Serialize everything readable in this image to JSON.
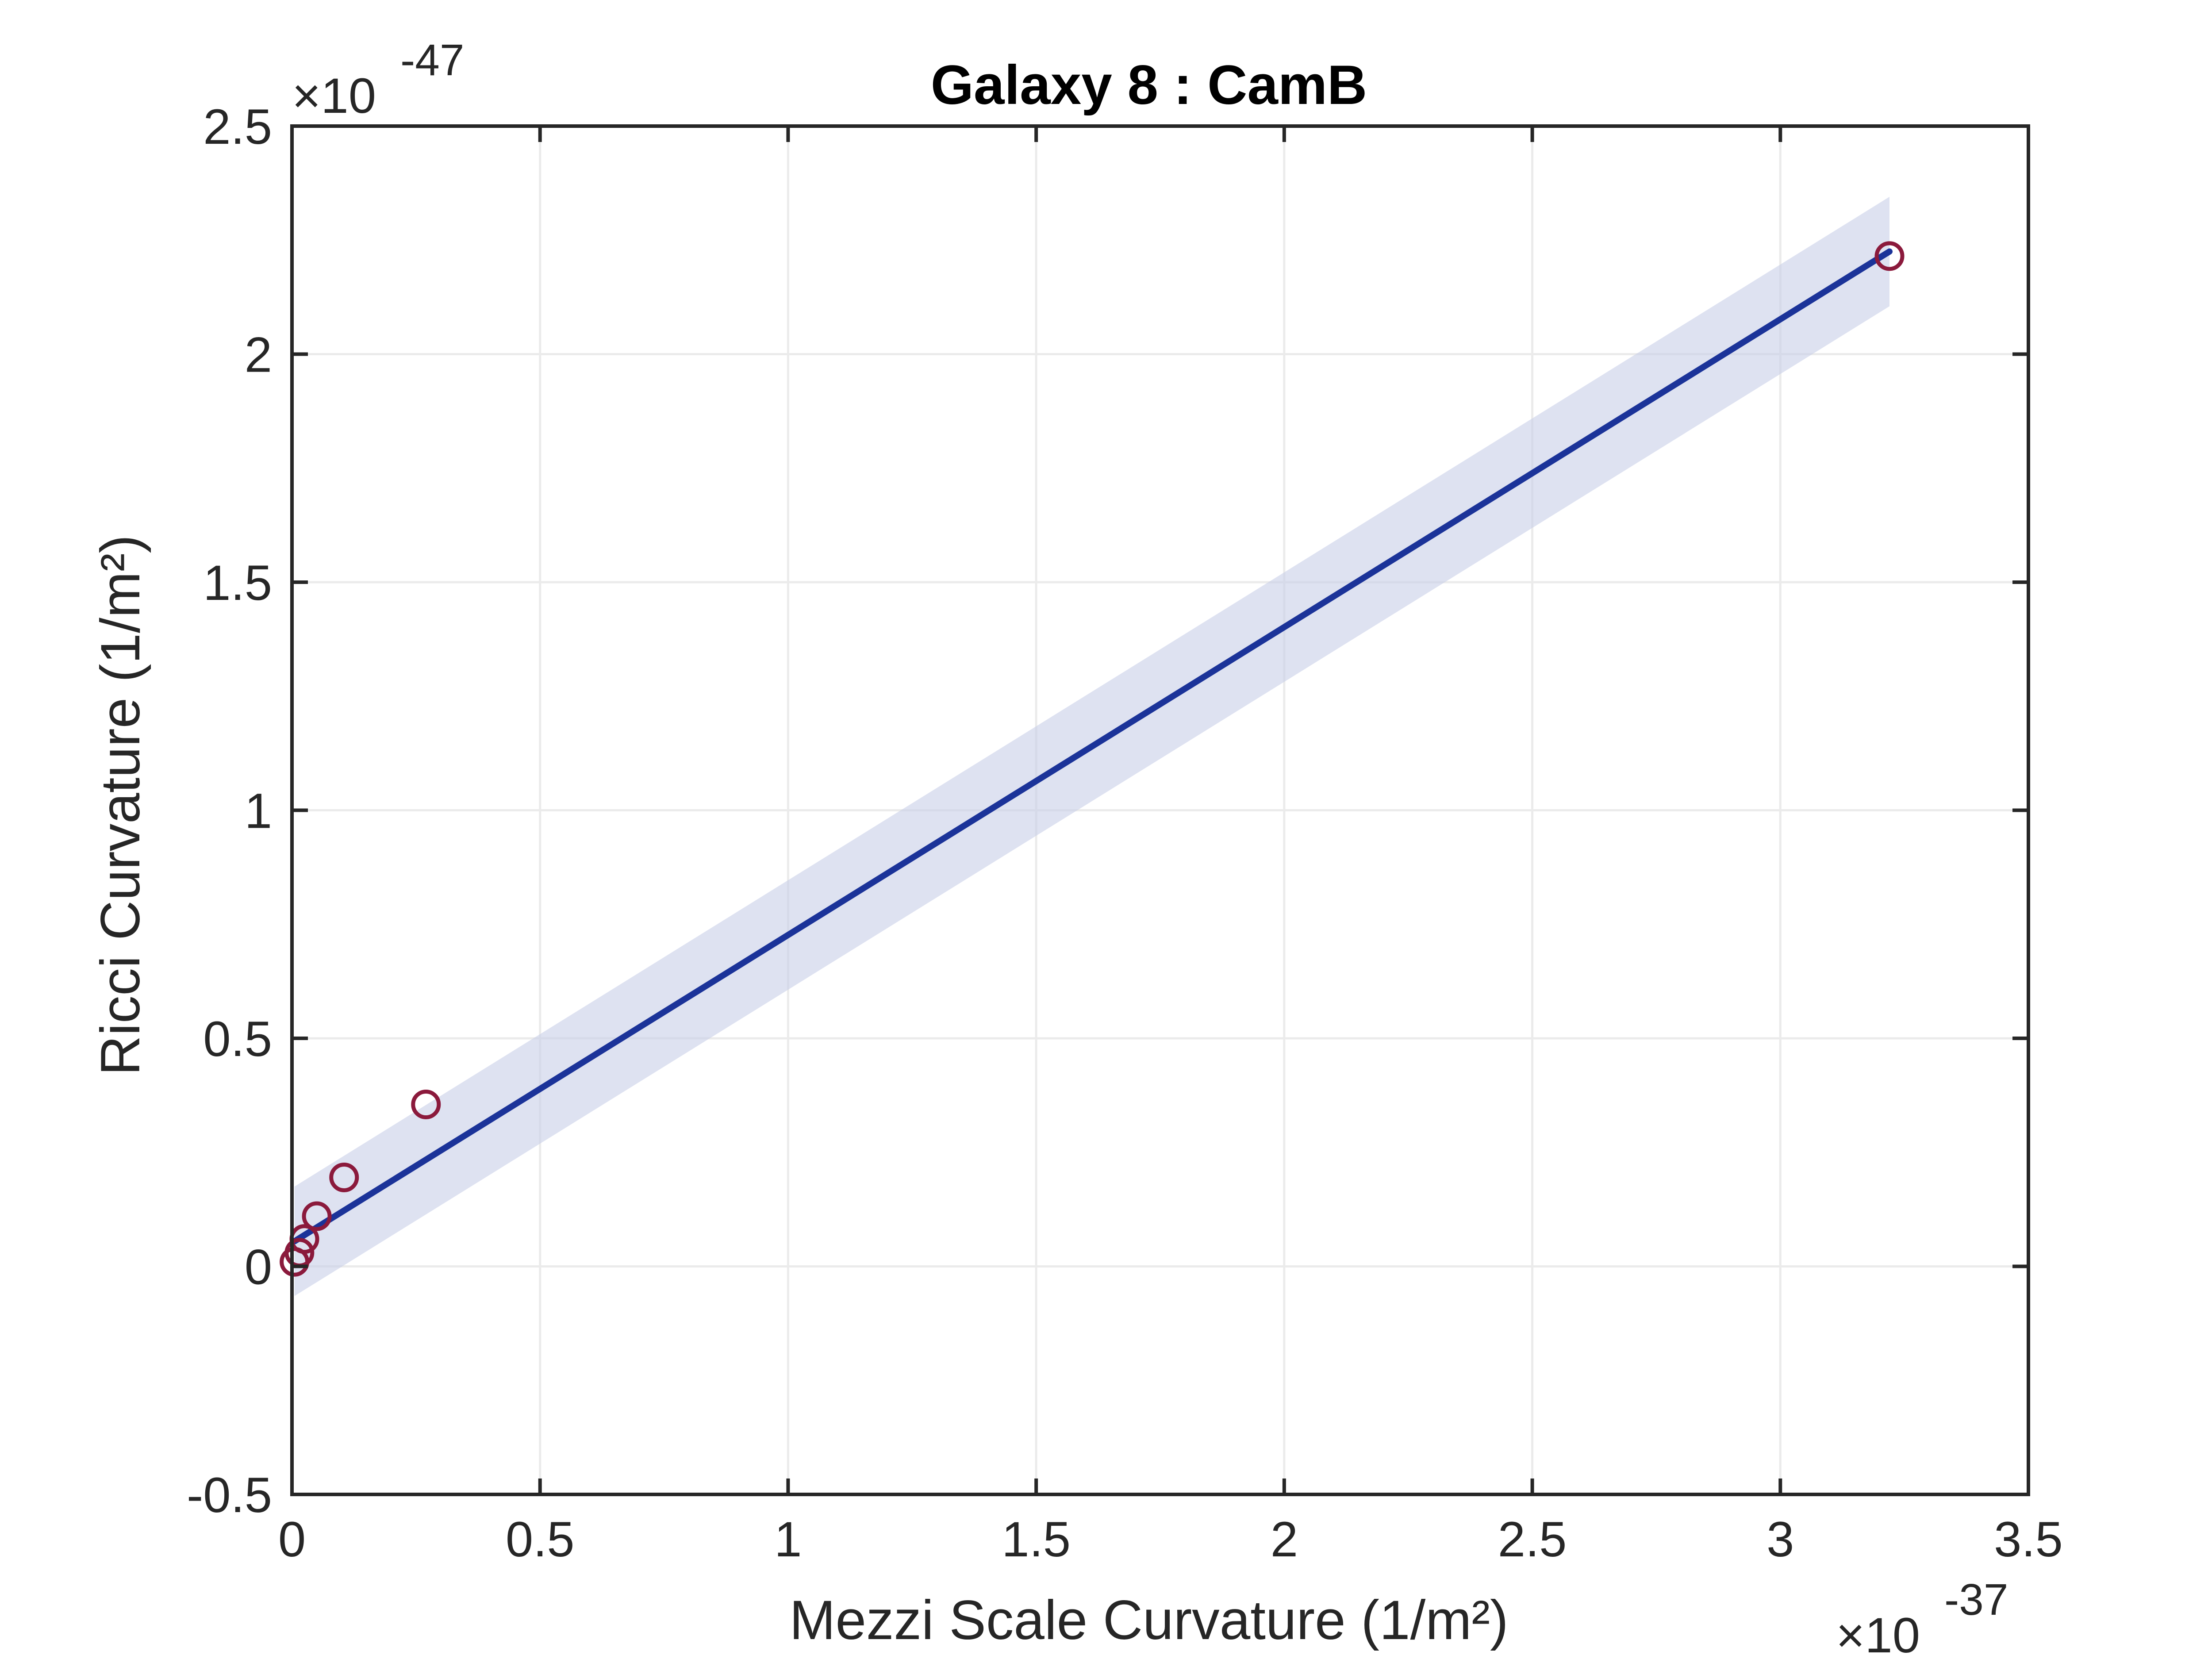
{
  "chart_data": {
    "type": "scatter",
    "title": "Galaxy 8 : CamB",
    "xlabel": "Mezzi Scale Curvature (1/m²)",
    "ylabel": "Ricci Curvature (1/m²)",
    "x_multiplier": {
      "times": "×10",
      "exponent": "-37"
    },
    "y_multiplier": {
      "times": "×10",
      "exponent": "-47"
    },
    "xlim": [
      0,
      3.5
    ],
    "ylim": [
      -0.5,
      2.5
    ],
    "xticks": [
      0,
      0.5,
      1,
      1.5,
      2,
      2.5,
      3,
      3.5
    ],
    "xtick_labels": [
      "0",
      "0.5",
      "1",
      "1.5",
      "2",
      "2.5",
      "3",
      "3.5"
    ],
    "yticks": [
      -0.5,
      0,
      0.5,
      1,
      1.5,
      2,
      2.5
    ],
    "ytick_labels": [
      "-0.5",
      "0",
      "0.5",
      "1",
      "1.5",
      "2",
      "2.5"
    ],
    "grid": true,
    "points": {
      "x": [
        0.005,
        0.015,
        0.025,
        0.05,
        0.105,
        0.27,
        3.22
      ],
      "y": [
        0.01,
        0.03,
        0.06,
        0.11,
        0.195,
        0.355,
        2.215
      ],
      "marker": "open-circle",
      "color": "#8B1A3C"
    },
    "fit_line": {
      "x": [
        0.005,
        3.22
      ],
      "y": [
        0.055,
        2.225
      ],
      "color": "#1B3399"
    },
    "confidence_band": {
      "x": [
        0.005,
        3.22
      ],
      "y_upper": [
        0.175,
        2.345
      ],
      "y_lower": [
        -0.065,
        2.105
      ],
      "color": "#C8CEE8"
    }
  }
}
